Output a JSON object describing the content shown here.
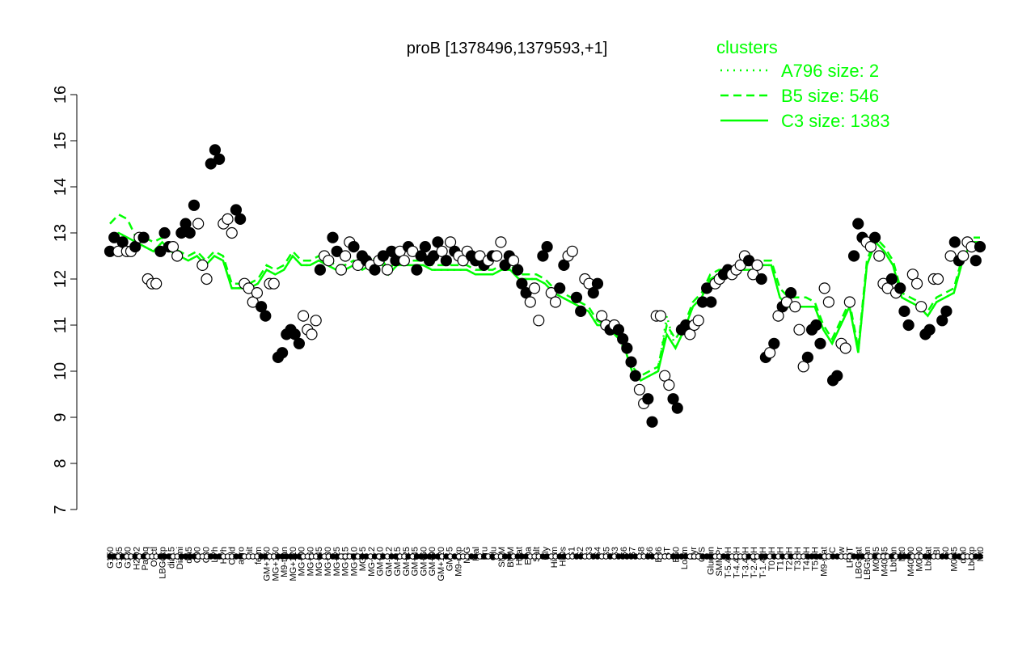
{
  "chart_data": {
    "type": "line",
    "title": "proB [1378496,1379593,+1]",
    "xlabel": "",
    "ylabel": "",
    "ylim": [
      7,
      16
    ],
    "yticks": [
      7,
      8,
      9,
      10,
      11,
      12,
      13,
      14,
      15,
      16
    ],
    "grid": false,
    "legend_position": "top-right",
    "legend": {
      "title": "clusters",
      "entries": [
        {
          "label": "A796 size: 2",
          "style": "dotted"
        },
        {
          "label": "B5 size: 546",
          "style": "dashed"
        },
        {
          "label": "C3 size: 1383",
          "style": "solid"
        }
      ]
    },
    "colors": {
      "series": "#00ff00",
      "points_filled": "#000000",
      "points_open": "#ffffff",
      "axis": "#000000"
    },
    "x_tick_labels": [
      "G150",
      "G135",
      "G180",
      "H2O2",
      "Paraq",
      "Oxctl",
      "LBGexp",
      "dia15",
      "Diami",
      "dia5",
      "C90",
      "C30",
      "LPh",
      "HPh",
      "Cold",
      "aero",
      "nit",
      "ferm",
      "GM+150",
      "MG+150",
      "M9-tran",
      "MG+120",
      "MG+90",
      "MG+60",
      "MG+45",
      "MG+30",
      "MG+25",
      "MG+15",
      "MG+10",
      "MG+5",
      "MG-0.2",
      "GM+10",
      "GM-0.2",
      "GM+15",
      "GM+25",
      "GM+45",
      "GM+60",
      "GM+90",
      "GM+120",
      "GM+5",
      "M9-exp",
      "M/G",
      "Mal",
      "Fru",
      "Glu",
      "SMM",
      "BMM",
      "Heat",
      "Etha",
      "Salt",
      "Gly",
      "HiTm",
      "HiOs",
      "S1",
      "S2",
      "S3",
      "S4",
      "S5",
      "S3",
      "S6",
      "S7",
      "S8",
      "S6",
      "B36",
      "BT",
      "B60",
      "LoTm",
      "Pyr",
      "G/S",
      "Glucon",
      "SMMPr",
      "T-5.40H",
      "T-4.40H",
      "T-3.40H",
      "T-2.40H",
      "T-1.40H",
      "T0.0H",
      "T1.0H",
      "T2.0H",
      "T3.0H",
      "T4.0H",
      "T5.0H",
      "M9-stat",
      "BC",
      "Sw",
      "LPhT",
      "LBGstat",
      "LBGtran",
      "M0t45",
      "M40t45",
      "Lbtran",
      "Mt0",
      "M40t90",
      "M0t90",
      "Lbstat",
      "BI",
      "S0",
      "M0t45",
      "dia0",
      "Lbexp",
      "Mt0"
    ],
    "series": [
      {
        "name": "C3 size: 1383",
        "values": [
          12.9,
          13.0,
          12.9,
          12.8,
          12.7,
          12.6,
          12.8,
          12.6,
          12.5,
          12.4,
          12.5,
          12.3,
          12.5,
          12.4,
          11.8,
          11.8,
          11.8,
          11.9,
          12.2,
          12.1,
          12.2,
          12.5,
          12.3,
          12.3,
          12.4,
          12.3,
          12.2,
          12.2,
          12.3,
          12.2,
          12.3,
          12.4,
          12.1,
          12.3,
          12.3,
          12.3,
          12.3,
          12.2,
          12.2,
          12.2,
          12.2,
          12.2,
          12.1,
          12.1,
          12.1,
          12.2,
          12.2,
          12.0,
          12.0,
          12.0,
          11.9,
          11.7,
          11.6,
          11.5,
          11.4,
          11.3,
          11.0,
          11.0,
          10.8,
          10.6,
          10.0,
          9.8,
          9.9,
          10.0,
          10.8,
          10.5,
          10.9,
          11.4,
          11.6,
          12.0,
          12.1,
          12.1,
          12.2,
          12.2,
          12.2,
          12.3,
          12.3,
          11.6,
          11.4,
          11.4,
          11.4,
          11.4,
          10.9,
          10.6,
          11.0,
          11.4,
          10.4,
          12.3,
          12.8,
          12.6,
          12.3,
          11.6,
          11.5,
          11.4,
          11.2,
          11.5,
          11.6,
          11.7,
          12.4,
          12.8,
          12.8
        ]
      },
      {
        "name": "B5 size: 546",
        "values": [
          13.2,
          13.4,
          13.3,
          12.9,
          12.9,
          12.8,
          12.9,
          12.7,
          12.6,
          12.5,
          12.6,
          12.4,
          12.6,
          12.5,
          11.9,
          11.9,
          11.9,
          12.0,
          12.3,
          12.2,
          12.3,
          12.6,
          12.4,
          12.4,
          12.5,
          12.4,
          12.3,
          12.3,
          12.4,
          12.3,
          12.4,
          12.5,
          12.2,
          12.4,
          12.4,
          12.4,
          12.4,
          12.3,
          12.3,
          12.3,
          12.3,
          12.3,
          12.2,
          12.2,
          12.2,
          12.3,
          12.3,
          12.1,
          12.1,
          12.1,
          12.0,
          11.8,
          11.7,
          11.6,
          11.5,
          11.4,
          11.1,
          11.0,
          10.9,
          10.5,
          10.1,
          9.9,
          10.0,
          10.1,
          11.0,
          10.7,
          11.0,
          11.5,
          11.7,
          12.1,
          12.2,
          12.2,
          12.3,
          12.3,
          12.3,
          12.4,
          12.4,
          11.8,
          11.6,
          11.6,
          11.6,
          11.5,
          11.0,
          10.7,
          11.1,
          11.5,
          10.5,
          12.4,
          12.9,
          12.7,
          12.4,
          11.7,
          11.6,
          11.5,
          11.3,
          11.6,
          11.7,
          11.8,
          12.5,
          12.9,
          12.9
        ]
      },
      {
        "name": "A796 size: 2",
        "values": [
          12.9,
          13.0,
          12.9,
          12.8,
          12.7,
          12.6,
          12.8,
          12.6,
          12.5,
          12.4,
          12.5,
          12.3,
          12.5,
          12.4,
          11.8,
          11.8,
          11.8,
          11.9,
          12.2,
          12.1,
          12.2,
          12.5,
          12.3,
          12.3,
          12.4,
          12.3,
          12.2,
          12.2,
          12.3,
          12.2,
          12.3,
          12.4,
          12.1,
          12.3,
          12.3,
          12.3,
          12.3,
          12.2,
          12.2,
          12.2,
          12.2,
          12.2,
          12.1,
          12.1,
          12.1,
          12.2,
          12.2,
          12.0,
          12.0,
          12.0,
          11.9,
          11.7,
          11.6,
          11.5,
          11.4,
          11.3,
          11.0,
          11.0,
          10.8,
          10.6,
          10.0,
          9.8,
          9.9,
          10.0,
          11.2,
          10.5,
          10.9,
          11.4,
          11.6,
          12.0,
          12.1,
          12.1,
          12.2,
          12.2,
          12.2,
          12.3,
          12.3,
          11.6,
          11.4,
          11.4,
          11.4,
          11.4,
          10.9,
          10.6,
          11.0,
          11.4,
          10.4,
          12.3,
          12.8,
          12.6,
          12.3,
          11.6,
          11.5,
          11.4,
          11.2,
          11.5,
          11.6,
          11.7,
          12.4,
          12.8,
          12.8
        ]
      }
    ],
    "points": [
      {
        "y": 12.6,
        "f": 1
      },
      {
        "y": 12.9,
        "f": 1
      },
      {
        "y": 12.6,
        "f": 0
      },
      {
        "y": 12.8,
        "f": 1
      },
      {
        "y": 12.6,
        "f": 0
      },
      {
        "y": 12.6,
        "f": 0
      },
      {
        "y": 12.7,
        "f": 1
      },
      {
        "y": 12.9,
        "f": 0
      },
      {
        "y": 12.9,
        "f": 1
      },
      {
        "y": 12.0,
        "f": 0
      },
      {
        "y": 11.9,
        "f": 0
      },
      {
        "y": 11.9,
        "f": 0
      },
      {
        "y": 12.6,
        "f": 1
      },
      {
        "y": 13.0,
        "f": 1
      },
      {
        "y": 12.7,
        "f": 1
      },
      {
        "y": 12.7,
        "f": 0
      },
      {
        "y": 12.5,
        "f": 0
      },
      {
        "y": 13.0,
        "f": 1
      },
      {
        "y": 13.2,
        "f": 1
      },
      {
        "y": 13.0,
        "f": 1
      },
      {
        "y": 13.6,
        "f": 1
      },
      {
        "y": 13.2,
        "f": 0
      },
      {
        "y": 12.3,
        "f": 0
      },
      {
        "y": 12.0,
        "f": 0
      },
      {
        "y": 14.5,
        "f": 1
      },
      {
        "y": 14.8,
        "f": 1
      },
      {
        "y": 14.6,
        "f": 1
      },
      {
        "y": 13.2,
        "f": 0
      },
      {
        "y": 13.3,
        "f": 0
      },
      {
        "y": 13.0,
        "f": 0
      },
      {
        "y": 13.5,
        "f": 1
      },
      {
        "y": 13.3,
        "f": 1
      },
      {
        "y": 11.9,
        "f": 0
      },
      {
        "y": 11.8,
        "f": 0
      },
      {
        "y": 11.5,
        "f": 0
      },
      {
        "y": 11.7,
        "f": 0
      },
      {
        "y": 11.4,
        "f": 1
      },
      {
        "y": 11.2,
        "f": 1
      },
      {
        "y": 11.9,
        "f": 0
      },
      {
        "y": 11.9,
        "f": 0
      },
      {
        "y": 10.3,
        "f": 1
      },
      {
        "y": 10.4,
        "f": 1
      },
      {
        "y": 10.8,
        "f": 1
      },
      {
        "y": 10.9,
        "f": 1
      },
      {
        "y": 10.8,
        "f": 1
      },
      {
        "y": 10.6,
        "f": 1
      },
      {
        "y": 11.2,
        "f": 0
      },
      {
        "y": 10.9,
        "f": 0
      },
      {
        "y": 10.8,
        "f": 0
      },
      {
        "y": 11.1,
        "f": 0
      },
      {
        "y": 12.2,
        "f": 1
      },
      {
        "y": 12.5,
        "f": 0
      },
      {
        "y": 12.4,
        "f": 0
      },
      {
        "y": 12.9,
        "f": 1
      },
      {
        "y": 12.6,
        "f": 1
      },
      {
        "y": 12.2,
        "f": 0
      },
      {
        "y": 12.5,
        "f": 0
      },
      {
        "y": 12.8,
        "f": 0
      },
      {
        "y": 12.7,
        "f": 1
      },
      {
        "y": 12.3,
        "f": 0
      },
      {
        "y": 12.5,
        "f": 1
      },
      {
        "y": 12.4,
        "f": 1
      },
      {
        "y": 12.3,
        "f": 0
      },
      {
        "y": 12.2,
        "f": 1
      },
      {
        "y": 12.4,
        "f": 0
      },
      {
        "y": 12.5,
        "f": 1
      },
      {
        "y": 12.2,
        "f": 0
      },
      {
        "y": 12.6,
        "f": 1
      },
      {
        "y": 12.4,
        "f": 1
      },
      {
        "y": 12.6,
        "f": 0
      },
      {
        "y": 12.4,
        "f": 0
      },
      {
        "y": 12.7,
        "f": 1
      },
      {
        "y": 12.6,
        "f": 0
      },
      {
        "y": 12.2,
        "f": 1
      },
      {
        "y": 12.5,
        "f": 1
      },
      {
        "y": 12.7,
        "f": 1
      },
      {
        "y": 12.4,
        "f": 1
      },
      {
        "y": 12.5,
        "f": 1
      },
      {
        "y": 12.8,
        "f": 1
      },
      {
        "y": 12.6,
        "f": 0
      },
      {
        "y": 12.4,
        "f": 1
      },
      {
        "y": 12.8,
        "f": 0
      },
      {
        "y": 12.6,
        "f": 1
      },
      {
        "y": 12.5,
        "f": 0
      },
      {
        "y": 12.4,
        "f": 0
      },
      {
        "y": 12.6,
        "f": 0
      },
      {
        "y": 12.5,
        "f": 1
      },
      {
        "y": 12.4,
        "f": 1
      },
      {
        "y": 12.5,
        "f": 0
      },
      {
        "y": 12.3,
        "f": 1
      },
      {
        "y": 12.4,
        "f": 0
      },
      {
        "y": 12.5,
        "f": 1
      },
      {
        "y": 12.5,
        "f": 0
      },
      {
        "y": 12.8,
        "f": 0
      },
      {
        "y": 12.3,
        "f": 1
      },
      {
        "y": 12.5,
        "f": 1
      },
      {
        "y": 12.4,
        "f": 0
      },
      {
        "y": 12.2,
        "f": 1
      },
      {
        "y": 11.9,
        "f": 1
      },
      {
        "y": 11.7,
        "f": 1
      },
      {
        "y": 11.5,
        "f": 0
      },
      {
        "y": 11.8,
        "f": 0
      },
      {
        "y": 11.1,
        "f": 0
      },
      {
        "y": 12.5,
        "f": 1
      },
      {
        "y": 12.7,
        "f": 1
      },
      {
        "y": 11.7,
        "f": 0
      },
      {
        "y": 11.5,
        "f": 0
      },
      {
        "y": 11.8,
        "f": 1
      },
      {
        "y": 12.3,
        "f": 1
      },
      {
        "y": 12.5,
        "f": 0
      },
      {
        "y": 12.6,
        "f": 0
      },
      {
        "y": 11.6,
        "f": 1
      },
      {
        "y": 11.3,
        "f": 1
      },
      {
        "y": 12.0,
        "f": 0
      },
      {
        "y": 11.9,
        "f": 0
      },
      {
        "y": 11.7,
        "f": 1
      },
      {
        "y": 11.9,
        "f": 1
      },
      {
        "y": 11.2,
        "f": 0
      },
      {
        "y": 11.0,
        "f": 0
      },
      {
        "y": 10.9,
        "f": 1
      },
      {
        "y": 11.0,
        "f": 0
      },
      {
        "y": 10.9,
        "f": 1
      },
      {
        "y": 10.7,
        "f": 1
      },
      {
        "y": 10.5,
        "f": 1
      },
      {
        "y": 10.2,
        "f": 1
      },
      {
        "y": 9.9,
        "f": 1
      },
      {
        "y": 9.6,
        "f": 0
      },
      {
        "y": 9.3,
        "f": 0
      },
      {
        "y": 9.4,
        "f": 1
      },
      {
        "y": 8.9,
        "f": 1
      },
      {
        "y": 11.2,
        "f": 0
      },
      {
        "y": 11.2,
        "f": 0
      },
      {
        "y": 9.9,
        "f": 0
      },
      {
        "y": 9.7,
        "f": 0
      },
      {
        "y": 9.4,
        "f": 1
      },
      {
        "y": 9.2,
        "f": 1
      },
      {
        "y": 10.9,
        "f": 1
      },
      {
        "y": 11.0,
        "f": 1
      },
      {
        "y": 10.8,
        "f": 0
      },
      {
        "y": 11.0,
        "f": 0
      },
      {
        "y": 11.1,
        "f": 0
      },
      {
        "y": 11.5,
        "f": 1
      },
      {
        "y": 11.8,
        "f": 1
      },
      {
        "y": 11.5,
        "f": 1
      },
      {
        "y": 11.9,
        "f": 0
      },
      {
        "y": 12.0,
        "f": 0
      },
      {
        "y": 12.1,
        "f": 1
      },
      {
        "y": 12.2,
        "f": 1
      },
      {
        "y": 12.1,
        "f": 0
      },
      {
        "y": 12.2,
        "f": 0
      },
      {
        "y": 12.3,
        "f": 0
      },
      {
        "y": 12.5,
        "f": 0
      },
      {
        "y": 12.4,
        "f": 1
      },
      {
        "y": 12.1,
        "f": 0
      },
      {
        "y": 12.3,
        "f": 0
      },
      {
        "y": 12.0,
        "f": 1
      },
      {
        "y": 10.3,
        "f": 1
      },
      {
        "y": 10.4,
        "f": 0
      },
      {
        "y": 10.6,
        "f": 1
      },
      {
        "y": 11.2,
        "f": 0
      },
      {
        "y": 11.4,
        "f": 1
      },
      {
        "y": 11.5,
        "f": 0
      },
      {
        "y": 11.7,
        "f": 1
      },
      {
        "y": 11.4,
        "f": 0
      },
      {
        "y": 10.9,
        "f": 0
      },
      {
        "y": 10.1,
        "f": 0
      },
      {
        "y": 10.3,
        "f": 1
      },
      {
        "y": 10.9,
        "f": 1
      },
      {
        "y": 11.0,
        "f": 1
      },
      {
        "y": 10.6,
        "f": 1
      },
      {
        "y": 11.8,
        "f": 0
      },
      {
        "y": 11.5,
        "f": 0
      },
      {
        "y": 9.8,
        "f": 1
      },
      {
        "y": 9.9,
        "f": 1
      },
      {
        "y": 10.6,
        "f": 0
      },
      {
        "y": 10.5,
        "f": 0
      },
      {
        "y": 11.5,
        "f": 0
      },
      {
        "y": 12.5,
        "f": 1
      },
      {
        "y": 13.2,
        "f": 1
      },
      {
        "y": 12.9,
        "f": 1
      },
      {
        "y": 12.8,
        "f": 0
      },
      {
        "y": 12.7,
        "f": 0
      },
      {
        "y": 12.9,
        "f": 1
      },
      {
        "y": 12.5,
        "f": 0
      },
      {
        "y": 11.9,
        "f": 0
      },
      {
        "y": 11.8,
        "f": 0
      },
      {
        "y": 12.0,
        "f": 1
      },
      {
        "y": 11.7,
        "f": 0
      },
      {
        "y": 11.8,
        "f": 1
      },
      {
        "y": 11.3,
        "f": 1
      },
      {
        "y": 11.0,
        "f": 1
      },
      {
        "y": 12.1,
        "f": 0
      },
      {
        "y": 11.9,
        "f": 0
      },
      {
        "y": 11.4,
        "f": 0
      },
      {
        "y": 10.8,
        "f": 1
      },
      {
        "y": 10.9,
        "f": 1
      },
      {
        "y": 12.0,
        "f": 0
      },
      {
        "y": 12.0,
        "f": 0
      },
      {
        "y": 11.1,
        "f": 1
      },
      {
        "y": 11.3,
        "f": 1
      },
      {
        "y": 12.5,
        "f": 0
      },
      {
        "y": 12.8,
        "f": 1
      },
      {
        "y": 12.4,
        "f": 1
      },
      {
        "y": 12.5,
        "f": 0
      },
      {
        "y": 12.8,
        "f": 0
      },
      {
        "y": 12.7,
        "f": 0
      },
      {
        "y": 12.4,
        "f": 1
      },
      {
        "y": 12.7,
        "f": 1
      }
    ]
  }
}
